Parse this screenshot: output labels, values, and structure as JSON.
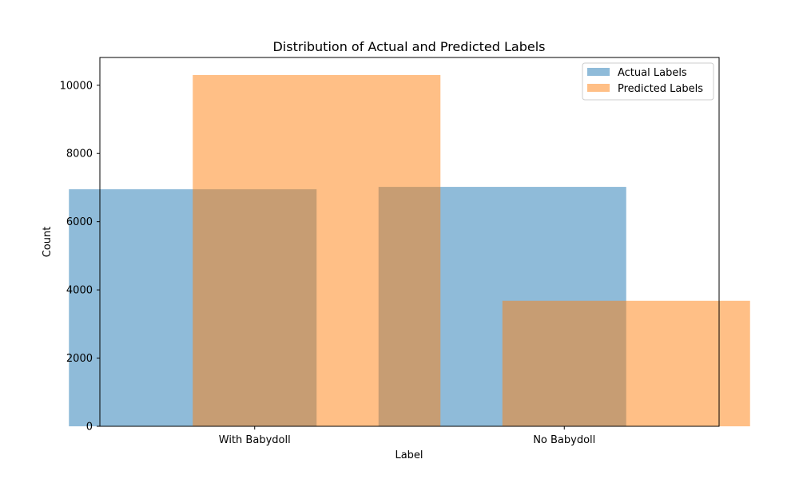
{
  "chart_data": {
    "type": "bar",
    "title": "Distribution of Actual and Predicted Labels",
    "xlabel": "Label",
    "ylabel": "Count",
    "categories": [
      "With Babydoll",
      "No Babydoll"
    ],
    "series": [
      {
        "name": "Actual Labels",
        "values": [
          6950,
          7020
        ],
        "color": "#1f77b4",
        "opacity": 0.5
      },
      {
        "name": "Predicted Labels",
        "values": [
          10300,
          3680
        ],
        "color": "#ff7f0e",
        "opacity": 0.5
      }
    ],
    "ylim": [
      0,
      10814
    ],
    "yticks": [
      0,
      2000,
      4000,
      6000,
      8000,
      10000
    ],
    "grid": false,
    "legend_position": "top-right"
  }
}
